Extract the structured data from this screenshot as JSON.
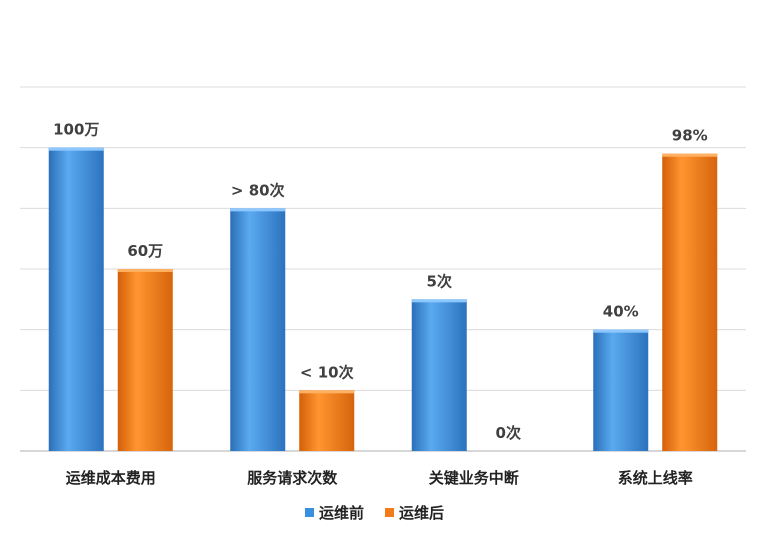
{
  "chart_data": {
    "type": "bar",
    "categories": [
      "运维成本费用",
      "服务请求次数",
      "关键业务中断",
      "系统上线率"
    ],
    "series": [
      {
        "name": "运维前",
        "color": "#3a8fde",
        "values": [
          5,
          4,
          2.5,
          2
        ],
        "labels": [
          "100万",
          "> 80次",
          "5次",
          "40%"
        ]
      },
      {
        "name": "运维后",
        "color": "#f27b1a",
        "values": [
          3,
          1,
          0,
          4.9
        ],
        "labels": [
          "60万",
          "< 10次",
          "0次",
          "98%"
        ]
      }
    ],
    "ylim": [
      0,
      6
    ],
    "grid": true,
    "legend": "bottom"
  }
}
